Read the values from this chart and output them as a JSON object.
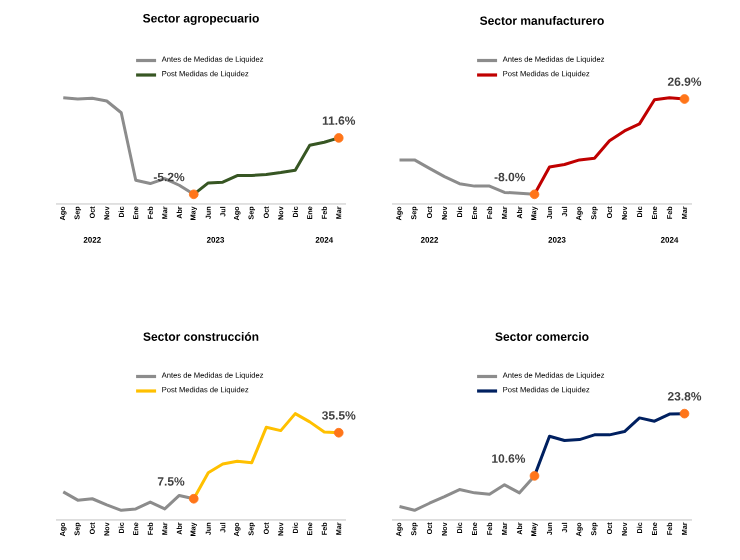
{
  "chart_data": [
    {
      "type": "line",
      "title": "Sector agropecuario",
      "categories": [
        "Ago",
        "Sep",
        "Oct",
        "Nov",
        "Dic",
        "Ene",
        "Feb",
        "Mar",
        "Abr",
        "May",
        "Jun",
        "Jul",
        "Ago",
        "Sep",
        "Oct",
        "Nov",
        "Dic",
        "Ene",
        "Feb",
        "Mar"
      ],
      "series": [
        {
          "name": "Antes de Medidas de Liquidez",
          "color": "#8c8c8c",
          "values": [
            23.6,
            23.2,
            23.4,
            22.6,
            19.1,
            -1.0,
            -2.0,
            -0.5,
            -2.5,
            -5.2,
            null,
            null,
            null,
            null,
            null,
            null,
            null,
            null,
            null,
            null
          ]
        },
        {
          "name": "Post Medidas de Liquidez",
          "color": "#375623",
          "values": [
            null,
            null,
            null,
            null,
            null,
            null,
            null,
            null,
            null,
            -5.2,
            -1.8,
            -1.6,
            0.4,
            0.4,
            0.7,
            1.3,
            2.0,
            9.4,
            10.3,
            11.6
          ],
          "value_labels": [
            null,
            null,
            null,
            null,
            null,
            null,
            null,
            null,
            null,
            "-5.2%",
            null,
            null,
            null,
            null,
            null,
            null,
            null,
            null,
            null,
            "11.6%"
          ]
        }
      ],
      "tick_labels": "x",
      "legend": "top",
      "annotations": [
        "2022",
        "2023",
        "2024"
      ]
    },
    {
      "type": "line",
      "title": "Sector manufacturero",
      "categories": [
        "Ago",
        "Sep",
        "Oct",
        "Nov",
        "Dic",
        "Ene",
        "Feb",
        "Mar",
        "Abr",
        "May",
        "Jun",
        "Jul",
        "Ago",
        "Sep",
        "Oct",
        "Nov",
        "Dic",
        "Ene",
        "Feb",
        "Mar"
      ],
      "series": [
        {
          "name": "Antes de Medidas de Liquidez",
          "color": "#8c8c8c",
          "values": [
            4.6,
            4.6,
            1.5,
            -1.5,
            -4.1,
            -5.0,
            -5.0,
            -7.3,
            -7.6,
            -8.0,
            null,
            null,
            null,
            null,
            null,
            null,
            null,
            null,
            null,
            null
          ]
        },
        {
          "name": "Post Medidas de Liquidez",
          "color": "#c00000",
          "values": [
            null,
            null,
            null,
            null,
            null,
            null,
            null,
            null,
            null,
            -8.0,
            2.0,
            2.9,
            4.6,
            5.2,
            11.6,
            15.2,
            17.8,
            26.6,
            27.4,
            26.9
          ],
          "value_labels": [
            null,
            null,
            null,
            null,
            null,
            null,
            null,
            null,
            null,
            "-8.0%",
            null,
            null,
            null,
            null,
            null,
            null,
            null,
            null,
            null,
            "26.9%"
          ]
        }
      ],
      "tick_labels": "x",
      "legend": "top",
      "annotations": [
        "2022",
        "2023",
        "2024"
      ]
    },
    {
      "type": "line",
      "title": "Sector construcción",
      "categories": [
        "Ago",
        "Sep",
        "Oct",
        "Nov",
        "Dic",
        "Ene",
        "Feb",
        "Mar",
        "Abr",
        "May",
        "Jun",
        "Jul",
        "Ago",
        "Sep",
        "Oct",
        "Nov",
        "Dic",
        "Ene",
        "Feb",
        "Mar"
      ],
      "series": [
        {
          "name": "Antes de Medidas de Liquidez",
          "color": "#8c8c8c",
          "values": [
            10.4,
            6.9,
            7.5,
            4.9,
            2.6,
            3.2,
            6.1,
            3.2,
            8.9,
            7.5,
            null,
            null,
            null,
            null,
            null,
            null,
            null,
            null,
            null,
            null
          ]
        },
        {
          "name": "Post Medidas de Liquidez",
          "color": "#ffc000",
          "values": [
            null,
            null,
            null,
            null,
            null,
            null,
            null,
            null,
            null,
            7.5,
            18.5,
            22.2,
            23.4,
            22.8,
            37.8,
            36.4,
            43.6,
            40.1,
            35.8,
            35.5
          ],
          "value_labels": [
            null,
            null,
            null,
            null,
            null,
            null,
            null,
            null,
            null,
            "7.5%",
            null,
            null,
            null,
            null,
            null,
            null,
            null,
            null,
            null,
            "35.5%"
          ]
        }
      ],
      "tick_labels": "x",
      "legend": "top"
    },
    {
      "type": "line",
      "title": "Sector comercio",
      "categories": [
        "Ago",
        "Sep",
        "Oct",
        "Nov",
        "Dic",
        "Ene",
        "Feb",
        "Mar",
        "Abr",
        "May",
        "Jun",
        "Jul",
        "Ago",
        "Sep",
        "Oct",
        "Nov",
        "Dic",
        "Ene",
        "Feb",
        "Mar"
      ],
      "series": [
        {
          "name": "Antes de Medidas de Liquidez",
          "color": "#8c8c8c",
          "values": [
            4.1,
            3.3,
            4.8,
            6.2,
            7.7,
            7.0,
            6.7,
            8.7,
            7.0,
            10.6,
            null,
            null,
            null,
            null,
            null,
            null,
            null,
            null,
            null,
            null
          ]
        },
        {
          "name": "Post Medidas de Liquidez",
          "color": "#002060",
          "values": [
            null,
            null,
            null,
            null,
            null,
            null,
            null,
            null,
            null,
            10.6,
            19.0,
            18.1,
            18.3,
            19.3,
            19.3,
            20.0,
            22.9,
            22.2,
            23.7,
            23.8
          ],
          "value_labels": [
            null,
            null,
            null,
            null,
            null,
            null,
            null,
            null,
            null,
            "10.6%",
            null,
            null,
            null,
            null,
            null,
            null,
            null,
            null,
            null,
            "23.8%"
          ]
        }
      ],
      "tick_labels": "x",
      "legend": "top"
    }
  ]
}
